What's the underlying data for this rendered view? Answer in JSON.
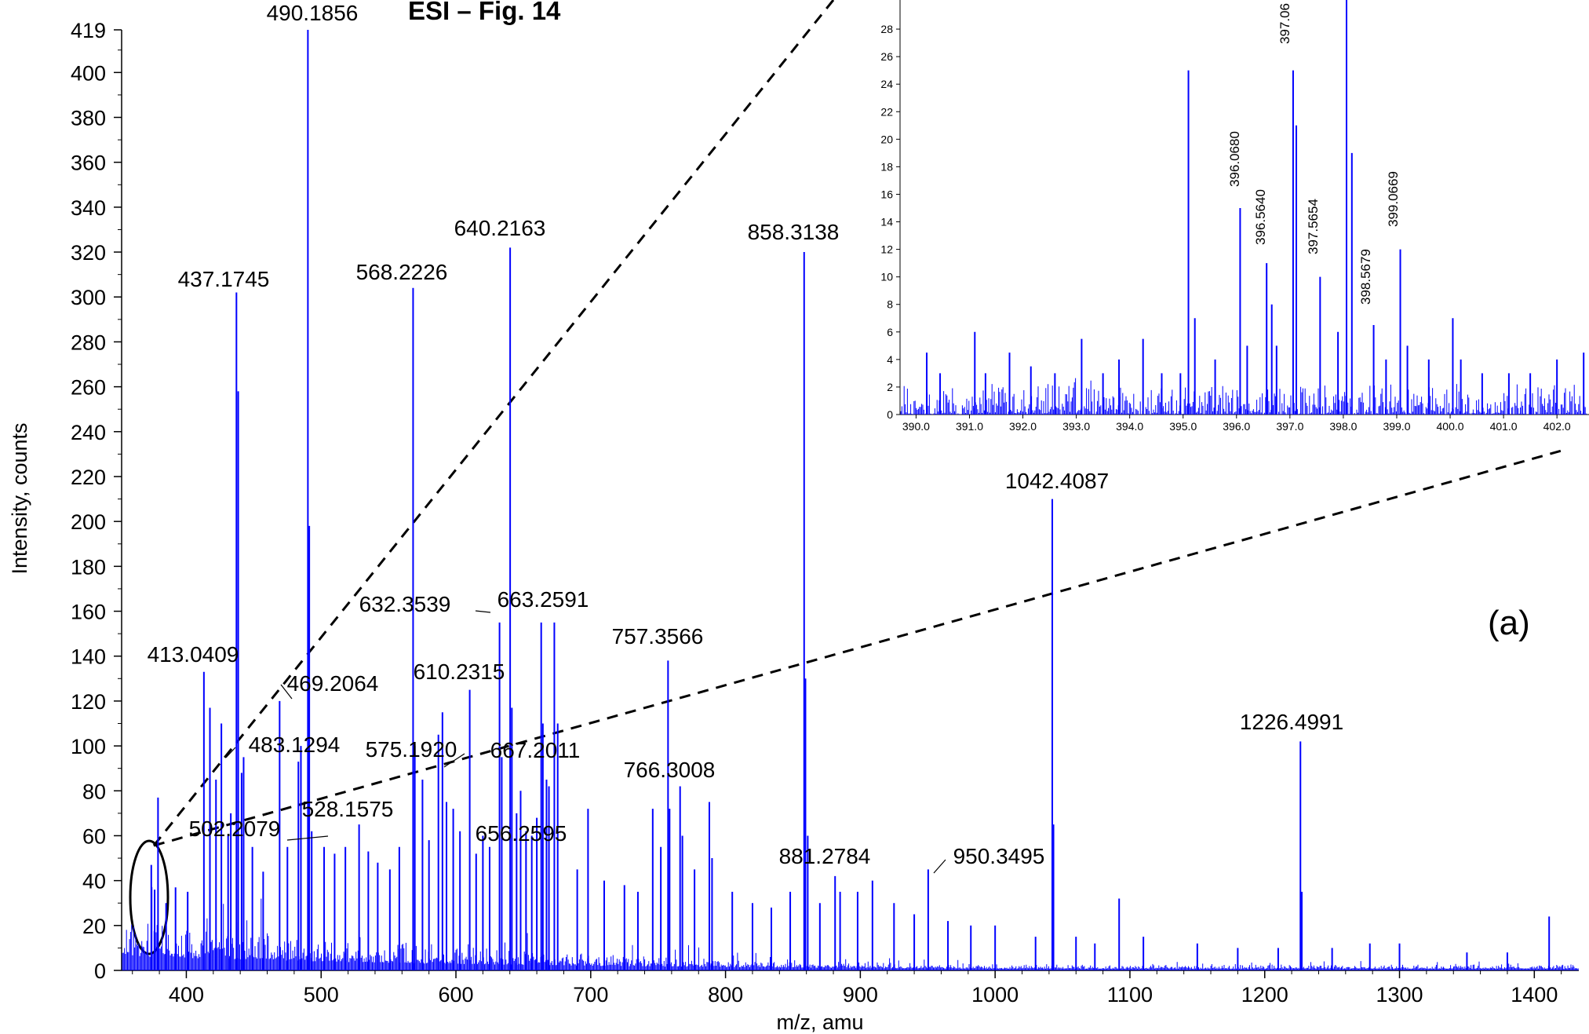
{
  "figure": {
    "title": "ESI – Fig. 14",
    "panel_label": "(a)"
  },
  "chart_data": [
    {
      "type": "line",
      "role": "main",
      "xlabel": "m/z, amu",
      "ylabel": "Intensity, counts",
      "xlim": [
        352,
        1433
      ],
      "ylim": [
        0,
        419
      ],
      "x_ticks": [
        400,
        500,
        600,
        700,
        800,
        900,
        1000,
        1100,
        1200,
        1300,
        1400
      ],
      "y_ticks": [
        0,
        20,
        40,
        60,
        80,
        100,
        120,
        140,
        160,
        180,
        200,
        220,
        240,
        260,
        280,
        300,
        320,
        340,
        360,
        380,
        400,
        419
      ],
      "color": "#0000ff",
      "grid": false,
      "peaks": [
        {
          "x": 374.0,
          "y": 47
        },
        {
          "x": 376.5,
          "y": 36
        },
        {
          "x": 379.0,
          "y": 77
        },
        {
          "x": 385.0,
          "y": 30
        },
        {
          "x": 392.0,
          "y": 37
        },
        {
          "x": 401.0,
          "y": 35
        },
        {
          "x": 413.0409,
          "y": 133
        },
        {
          "x": 417.5,
          "y": 117
        },
        {
          "x": 422.0,
          "y": 85
        },
        {
          "x": 426.0,
          "y": 110
        },
        {
          "x": 431.0,
          "y": 60
        },
        {
          "x": 433.0,
          "y": 70
        },
        {
          "x": 437.1745,
          "y": 302
        },
        {
          "x": 438.5,
          "y": 258
        },
        {
          "x": 441.0,
          "y": 88
        },
        {
          "x": 442.5,
          "y": 95
        },
        {
          "x": 449.0,
          "y": 55
        },
        {
          "x": 457.0,
          "y": 44
        },
        {
          "x": 469.2064,
          "y": 120
        },
        {
          "x": 475.0,
          "y": 55
        },
        {
          "x": 483.1294,
          "y": 93
        },
        {
          "x": 485.0,
          "y": 100
        },
        {
          "x": 490.1856,
          "y": 419
        },
        {
          "x": 491.2,
          "y": 198
        },
        {
          "x": 493.0,
          "y": 62
        },
        {
          "x": 502.2079,
          "y": 55
        },
        {
          "x": 510.0,
          "y": 52
        },
        {
          "x": 518.0,
          "y": 55
        },
        {
          "x": 528.1575,
          "y": 65
        },
        {
          "x": 535.0,
          "y": 53
        },
        {
          "x": 542.0,
          "y": 48
        },
        {
          "x": 551.0,
          "y": 45
        },
        {
          "x": 558.0,
          "y": 55
        },
        {
          "x": 568.2226,
          "y": 304
        },
        {
          "x": 569.5,
          "y": 100
        },
        {
          "x": 575.192,
          "y": 85
        },
        {
          "x": 580.0,
          "y": 58
        },
        {
          "x": 587.0,
          "y": 105
        },
        {
          "x": 590.0,
          "y": 115
        },
        {
          "x": 593.0,
          "y": 75
        },
        {
          "x": 598.0,
          "y": 72
        },
        {
          "x": 603.0,
          "y": 62
        },
        {
          "x": 610.2315,
          "y": 125
        },
        {
          "x": 615.0,
          "y": 52
        },
        {
          "x": 620.0,
          "y": 60
        },
        {
          "x": 625.0,
          "y": 55
        },
        {
          "x": 632.3539,
          "y": 155
        },
        {
          "x": 634.0,
          "y": 95
        },
        {
          "x": 640.2163,
          "y": 322
        },
        {
          "x": 641.5,
          "y": 117
        },
        {
          "x": 645.0,
          "y": 70
        },
        {
          "x": 648.0,
          "y": 80
        },
        {
          "x": 652.0,
          "y": 62
        },
        {
          "x": 656.2595,
          "y": 60
        },
        {
          "x": 660.0,
          "y": 68
        },
        {
          "x": 663.2591,
          "y": 155
        },
        {
          "x": 664.5,
          "y": 110
        },
        {
          "x": 667.2011,
          "y": 85
        },
        {
          "x": 669.0,
          "y": 82
        },
        {
          "x": 673.0,
          "y": 155
        },
        {
          "x": 675.5,
          "y": 110
        },
        {
          "x": 690.0,
          "y": 45
        },
        {
          "x": 698.0,
          "y": 72
        },
        {
          "x": 710.0,
          "y": 40
        },
        {
          "x": 725.0,
          "y": 38
        },
        {
          "x": 735.0,
          "y": 35
        },
        {
          "x": 746.0,
          "y": 72
        },
        {
          "x": 752.0,
          "y": 55
        },
        {
          "x": 757.3566,
          "y": 138
        },
        {
          "x": 758.5,
          "y": 72
        },
        {
          "x": 766.3008,
          "y": 82
        },
        {
          "x": 768.0,
          "y": 60
        },
        {
          "x": 777.0,
          "y": 45
        },
        {
          "x": 788.0,
          "y": 75
        },
        {
          "x": 790.0,
          "y": 50
        },
        {
          "x": 805.0,
          "y": 35
        },
        {
          "x": 820.0,
          "y": 30
        },
        {
          "x": 834.0,
          "y": 28
        },
        {
          "x": 848.0,
          "y": 35
        },
        {
          "x": 858.3138,
          "y": 320
        },
        {
          "x": 859.3,
          "y": 130
        },
        {
          "x": 861.0,
          "y": 60
        },
        {
          "x": 870.0,
          "y": 30
        },
        {
          "x": 881.2784,
          "y": 42
        },
        {
          "x": 885.0,
          "y": 35
        },
        {
          "x": 898.0,
          "y": 35
        },
        {
          "x": 909.0,
          "y": 40
        },
        {
          "x": 925.0,
          "y": 30
        },
        {
          "x": 940.0,
          "y": 25
        },
        {
          "x": 950.3495,
          "y": 45
        },
        {
          "x": 965.0,
          "y": 22
        },
        {
          "x": 982.0,
          "y": 20
        },
        {
          "x": 1000.0,
          "y": 20
        },
        {
          "x": 1030.0,
          "y": 15
        },
        {
          "x": 1042.4087,
          "y": 210
        },
        {
          "x": 1043.3,
          "y": 65
        },
        {
          "x": 1060.0,
          "y": 15
        },
        {
          "x": 1074.0,
          "y": 12
        },
        {
          "x": 1092.0,
          "y": 32
        },
        {
          "x": 1110.0,
          "y": 15
        },
        {
          "x": 1150.0,
          "y": 12
        },
        {
          "x": 1180.0,
          "y": 10
        },
        {
          "x": 1210.0,
          "y": 10
        },
        {
          "x": 1226.4991,
          "y": 102
        },
        {
          "x": 1227.5,
          "y": 35
        },
        {
          "x": 1250.0,
          "y": 10
        },
        {
          "x": 1278.0,
          "y": 12
        },
        {
          "x": 1300.0,
          "y": 12
        },
        {
          "x": 1350.0,
          "y": 8
        },
        {
          "x": 1380.0,
          "y": 8
        },
        {
          "x": 1411.0,
          "y": 24
        }
      ],
      "labels": [
        {
          "text": "490.1856",
          "x": 490.1856
        },
        {
          "text": "437.1745",
          "x": 437.1745
        },
        {
          "text": "568.2226",
          "x": 568.2226
        },
        {
          "text": "640.2163",
          "x": 640.2163
        },
        {
          "text": "858.3138",
          "x": 858.3138
        },
        {
          "text": "1042.4087",
          "x": 1042.4087
        },
        {
          "text": "632.3539",
          "x": 632.3539
        },
        {
          "text": "663.2591",
          "x": 663.2591
        },
        {
          "text": "757.3566",
          "x": 757.3566
        },
        {
          "text": "413.0409",
          "x": 413.0409
        },
        {
          "text": "469.2064",
          "x": 469.2064
        },
        {
          "text": "610.2315",
          "x": 610.2315
        },
        {
          "text": "1226.4991",
          "x": 1226.4991
        },
        {
          "text": "483.1294",
          "x": 483.1294
        },
        {
          "text": "575.1920",
          "x": 575.192
        },
        {
          "text": "667.2011",
          "x": 667.2011
        },
        {
          "text": "766.3008",
          "x": 766.3008
        },
        {
          "text": "528.1575",
          "x": 528.1575
        },
        {
          "text": "502.2079",
          "x": 502.2079
        },
        {
          "text": "656.2595",
          "x": 656.2595
        },
        {
          "text": "881.2784",
          "x": 881.2784
        },
        {
          "text": "950.3495",
          "x": 950.3495
        }
      ]
    },
    {
      "type": "line",
      "role": "inset",
      "xlim": [
        389.7,
        402.6
      ],
      "ylim": [
        0,
        30
      ],
      "x_ticks": [
        "390.0",
        "391.0",
        "392.0",
        "393.0",
        "394.0",
        "395.0",
        "396.0",
        "397.0",
        "398.0",
        "399.0",
        "400.0",
        "401.0",
        "402.0"
      ],
      "y_ticks": [
        0,
        2,
        4,
        6,
        8,
        10,
        12,
        14,
        16,
        18,
        20,
        22,
        24,
        26,
        28
      ],
      "color": "#0000ff",
      "peaks": [
        {
          "x": 390.2,
          "y": 4.5
        },
        {
          "x": 390.45,
          "y": 3
        },
        {
          "x": 391.1,
          "y": 6
        },
        {
          "x": 391.3,
          "y": 3
        },
        {
          "x": 391.75,
          "y": 4.5
        },
        {
          "x": 392.15,
          "y": 3.5
        },
        {
          "x": 392.6,
          "y": 3
        },
        {
          "x": 393.1,
          "y": 5.5
        },
        {
          "x": 393.5,
          "y": 3
        },
        {
          "x": 393.8,
          "y": 4
        },
        {
          "x": 394.25,
          "y": 5.5
        },
        {
          "x": 394.6,
          "y": 3
        },
        {
          "x": 394.95,
          "y": 3
        },
        {
          "x": 395.1,
          "y": 25
        },
        {
          "x": 395.22,
          "y": 7
        },
        {
          "x": 395.6,
          "y": 4
        },
        {
          "x": 396.068,
          "y": 15
        },
        {
          "x": 396.2,
          "y": 5
        },
        {
          "x": 396.564,
          "y": 11
        },
        {
          "x": 396.66,
          "y": 8
        },
        {
          "x": 396.75,
          "y": 5
        },
        {
          "x": 397.06,
          "y": 25
        },
        {
          "x": 397.12,
          "y": 21
        },
        {
          "x": 397.5654,
          "y": 10
        },
        {
          "x": 397.9,
          "y": 6
        },
        {
          "x": 398.06,
          "y": 32
        },
        {
          "x": 398.16,
          "y": 19
        },
        {
          "x": 398.5679,
          "y": 6.5
        },
        {
          "x": 398.8,
          "y": 4
        },
        {
          "x": 399.0669,
          "y": 12
        },
        {
          "x": 399.2,
          "y": 5
        },
        {
          "x": 399.6,
          "y": 4
        },
        {
          "x": 400.05,
          "y": 7
        },
        {
          "x": 400.2,
          "y": 4
        },
        {
          "x": 400.6,
          "y": 3
        },
        {
          "x": 401.1,
          "y": 3
        },
        {
          "x": 401.5,
          "y": 3
        },
        {
          "x": 402.0,
          "y": 4
        },
        {
          "x": 402.5,
          "y": 4.5
        }
      ],
      "labels": [
        {
          "text": "396.0680",
          "x": 396.068
        },
        {
          "text": "396.5640",
          "x": 396.564
        },
        {
          "text": "397.5654",
          "x": 397.5654
        },
        {
          "text": "398.5679",
          "x": 398.5679
        },
        {
          "text": "399.0669",
          "x": 399.0669
        },
        {
          "text": "397.06",
          "x": 397.06
        }
      ]
    }
  ]
}
